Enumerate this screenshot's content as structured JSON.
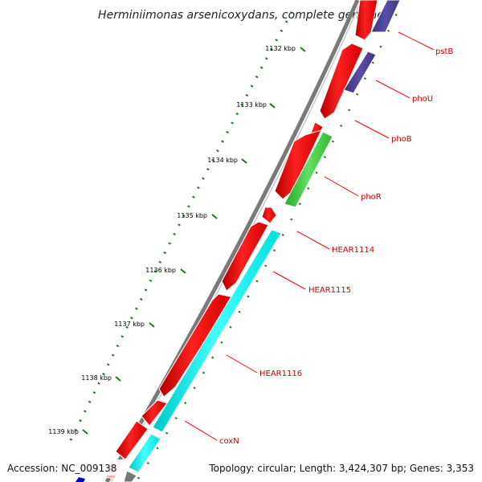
{
  "title": "Herminiimonas arsenicoxydans, complete genome",
  "footer": {
    "accession": "Accession: NC_009138",
    "topology": "Topology: circular; Length: 3,424,307 bp; Genes: 3,353"
  },
  "ticks": [
    "1132 kbp",
    "1133 kbp",
    "1134 kbp",
    "1135 kbp",
    "1136 kbp",
    "1137 kbp",
    "1138 kbp",
    "1139 kbp"
  ],
  "genes": [
    "pstB",
    "phoU",
    "phoB",
    "phoR",
    "HEAR1114",
    "HEAR1115",
    "HEAR1116",
    "coxN"
  ],
  "colors": {
    "cds_forward": "#ff0000",
    "cds_reverse_blue": "#4a3f8f",
    "cds_green": "#3fcc3f",
    "cds_cyan": "#00ffff",
    "backbone": "#808080",
    "gc_dots": "#1a7a1a",
    "label_line": "#ff0000"
  }
}
